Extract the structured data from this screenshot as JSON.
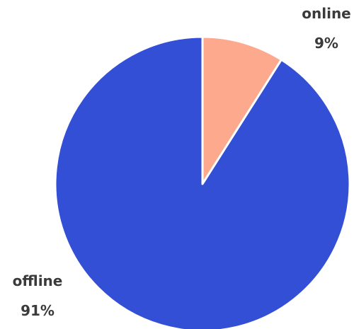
{
  "chart_data": {
    "type": "pie",
    "title": "",
    "start": "12 o'clock",
    "direction": "clockwise",
    "slices": [
      {
        "name": "online",
        "value": 9,
        "label": "9%",
        "color": "#fca98e"
      },
      {
        "name": "offline",
        "value": 91,
        "label": "91%",
        "color": "#334fd6"
      }
    ],
    "separator_color": "#ffffff"
  }
}
